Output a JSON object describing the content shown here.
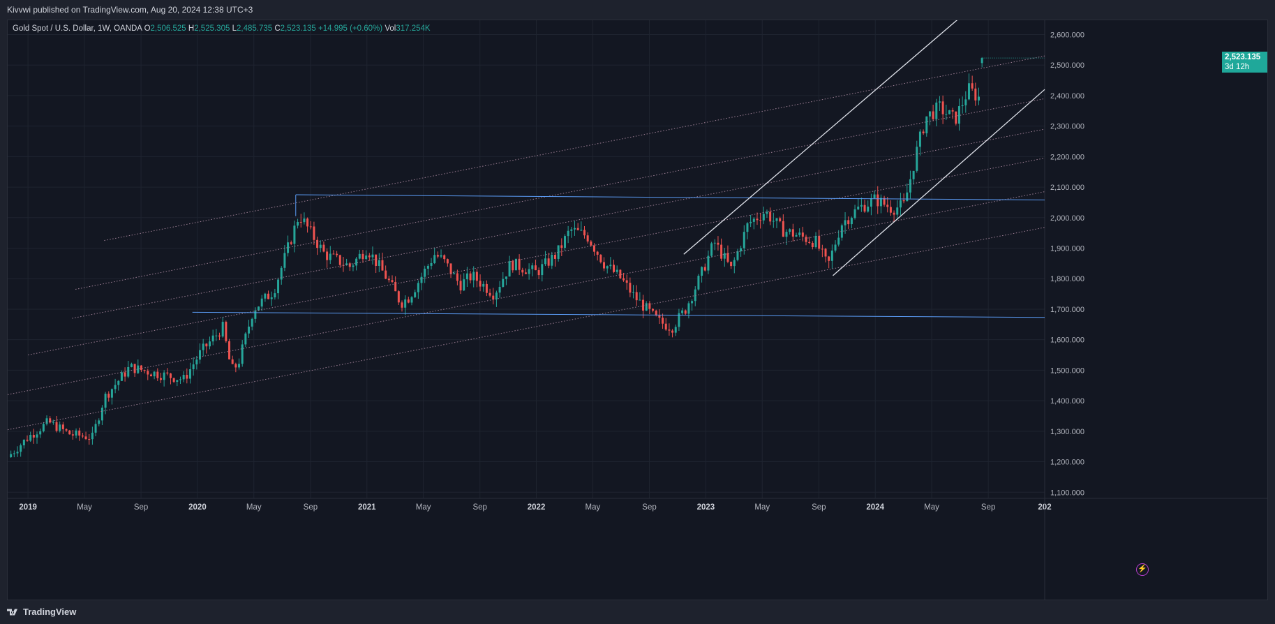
{
  "header": {
    "publish_line": "Kivvwi published on TradingView.com, Aug 20, 2024 12:38 UTC+3"
  },
  "legend": {
    "symbol": "Gold Spot / U.S. Dollar, 1W, OANDA",
    "o_label": "O",
    "o_value": "2,506.525",
    "h_label": "H",
    "h_value": "2,525.305",
    "l_label": "L",
    "l_value": "2,485.735",
    "c_label": "C",
    "c_value": "2,523.135",
    "change": "+14.995 (+0.60%)",
    "vol_label": "Vol",
    "vol_value": "317.254K"
  },
  "price_tag": {
    "price": "2,523.135",
    "countdown": "3d 12h"
  },
  "footer": {
    "brand": "TradingView"
  },
  "colors": {
    "background": "#131722",
    "grid": "#1f2430",
    "up": "#26a69a",
    "down": "#ef5350",
    "range_line": "#5b9cf6",
    "channel_line": "#e0e3eb",
    "fib_line": "#9e7f95",
    "price_tag": "#1fa89a"
  },
  "chart_data": {
    "type": "candlestick",
    "title": "Gold Spot / U.S. Dollar, 1W, OANDA",
    "timeframe": "1W",
    "ylim": [
      1080,
      2640
    ],
    "y_ticks": [
      "2,600.000",
      "2,500.000",
      "2,400.000",
      "2,300.000",
      "2,200.000",
      "2,100.000",
      "2,000.000",
      "1,900.000",
      "1,800.000",
      "1,700.000",
      "1,600.000",
      "1,500.000",
      "1,400.000",
      "1,300.000",
      "1,200.000",
      "1,100.000"
    ],
    "x_start": 2018.88,
    "x_end": 2025.0,
    "x_ticks": [
      {
        "t": 2019.0,
        "label": "2019",
        "bold": true
      },
      {
        "t": 2019.333,
        "label": "May",
        "bold": false
      },
      {
        "t": 2019.667,
        "label": "Sep",
        "bold": false
      },
      {
        "t": 2020.0,
        "label": "2020",
        "bold": true
      },
      {
        "t": 2020.333,
        "label": "May",
        "bold": false
      },
      {
        "t": 2020.667,
        "label": "Sep",
        "bold": false
      },
      {
        "t": 2021.0,
        "label": "2021",
        "bold": true
      },
      {
        "t": 2021.333,
        "label": "May",
        "bold": false
      },
      {
        "t": 2021.667,
        "label": "Sep",
        "bold": false
      },
      {
        "t": 2022.0,
        "label": "2022",
        "bold": true
      },
      {
        "t": 2022.333,
        "label": "May",
        "bold": false
      },
      {
        "t": 2022.667,
        "label": "Sep",
        "bold": false
      },
      {
        "t": 2023.0,
        "label": "2023",
        "bold": true
      },
      {
        "t": 2023.333,
        "label": "May",
        "bold": false
      },
      {
        "t": 2023.667,
        "label": "Sep",
        "bold": false
      },
      {
        "t": 2024.0,
        "label": "2024",
        "bold": true
      },
      {
        "t": 2024.333,
        "label": "May",
        "bold": false
      },
      {
        "t": 2024.667,
        "label": "Sep",
        "bold": false
      },
      {
        "t": 2025.0,
        "label": "202",
        "bold": true
      }
    ],
    "last_price": 2523.135,
    "price_anchors": [
      [
        2018.88,
        1215
      ],
      [
        2019.0,
        1280
      ],
      [
        2019.12,
        1330
      ],
      [
        2019.25,
        1290
      ],
      [
        2019.38,
        1280
      ],
      [
        2019.45,
        1410
      ],
      [
        2019.6,
        1510
      ],
      [
        2019.75,
        1490
      ],
      [
        2019.92,
        1470
      ],
      [
        2020.02,
        1560
      ],
      [
        2020.15,
        1640
      ],
      [
        2020.2,
        1500
      ],
      [
        2020.24,
        1520
      ],
      [
        2020.33,
        1700
      ],
      [
        2020.45,
        1760
      ],
      [
        2020.6,
        2010
      ],
      [
        2020.75,
        1880
      ],
      [
        2020.9,
        1840
      ],
      [
        2021.0,
        1900
      ],
      [
        2021.12,
        1800
      ],
      [
        2021.2,
        1720
      ],
      [
        2021.25,
        1740
      ],
      [
        2021.4,
        1880
      ],
      [
        2021.45,
        1860
      ],
      [
        2021.55,
        1780
      ],
      [
        2021.62,
        1810
      ],
      [
        2021.75,
        1750
      ],
      [
        2021.85,
        1850
      ],
      [
        2022.0,
        1820
      ],
      [
        2022.12,
        1880
      ],
      [
        2022.2,
        1960
      ],
      [
        2022.3,
        1940
      ],
      [
        2022.4,
        1850
      ],
      [
        2022.5,
        1800
      ],
      [
        2022.58,
        1740
      ],
      [
        2022.72,
        1660
      ],
      [
        2022.8,
        1640
      ],
      [
        2022.88,
        1700
      ],
      [
        2022.97,
        1810
      ],
      [
        2023.05,
        1920
      ],
      [
        2023.15,
        1830
      ],
      [
        2023.25,
        1980
      ],
      [
        2023.35,
        2020
      ],
      [
        2023.45,
        1960
      ],
      [
        2023.55,
        1940
      ],
      [
        2023.65,
        1920
      ],
      [
        2023.72,
        1840
      ],
      [
        2023.8,
        1980
      ],
      [
        2023.9,
        2030
      ],
      [
        2024.0,
        2060
      ],
      [
        2024.1,
        2030
      ],
      [
        2024.17,
        2040
      ],
      [
        2024.25,
        2230
      ],
      [
        2024.3,
        2330
      ],
      [
        2024.38,
        2360
      ],
      [
        2024.47,
        2320
      ],
      [
        2024.55,
        2420
      ],
      [
        2024.62,
        2390
      ],
      [
        2024.64,
        2510
      ]
    ],
    "horizontal_range": [
      {
        "name": "range-top",
        "from": [
          2020.58,
          2075
        ],
        "to": [
          2025.0,
          2058
        ]
      },
      {
        "name": "range-bottom",
        "from": [
          2019.97,
          1690
        ],
        "to": [
          2025.0,
          1673
        ]
      }
    ],
    "rising_channel": [
      {
        "name": "channel-upper",
        "from": [
          2022.87,
          1880
        ],
        "to": [
          2024.53,
          2670
        ]
      },
      {
        "name": "channel-lower",
        "from": [
          2023.75,
          1810
        ],
        "to": [
          2025.0,
          2420
        ]
      }
    ],
    "parallel_fib_lines": [
      {
        "name": "fib-line-1",
        "from": [
          2019.45,
          1925
        ],
        "to": [
          2025.0,
          2530
        ]
      },
      {
        "name": "fib-line-2",
        "from": [
          2019.28,
          1765
        ],
        "to": [
          2025.0,
          2390
        ]
      },
      {
        "name": "fib-line-3",
        "from": [
          2019.26,
          1670
        ],
        "to": [
          2025.0,
          2290
        ]
      },
      {
        "name": "fib-line-4",
        "from": [
          2019.0,
          1550
        ],
        "to": [
          2025.0,
          2195
        ]
      },
      {
        "name": "fib-line-5",
        "from": [
          2018.88,
          1420
        ],
        "to": [
          2025.0,
          2085
        ]
      },
      {
        "name": "fib-line-6",
        "from": [
          2018.88,
          1305
        ],
        "to": [
          2025.0,
          1968
        ]
      }
    ]
  }
}
